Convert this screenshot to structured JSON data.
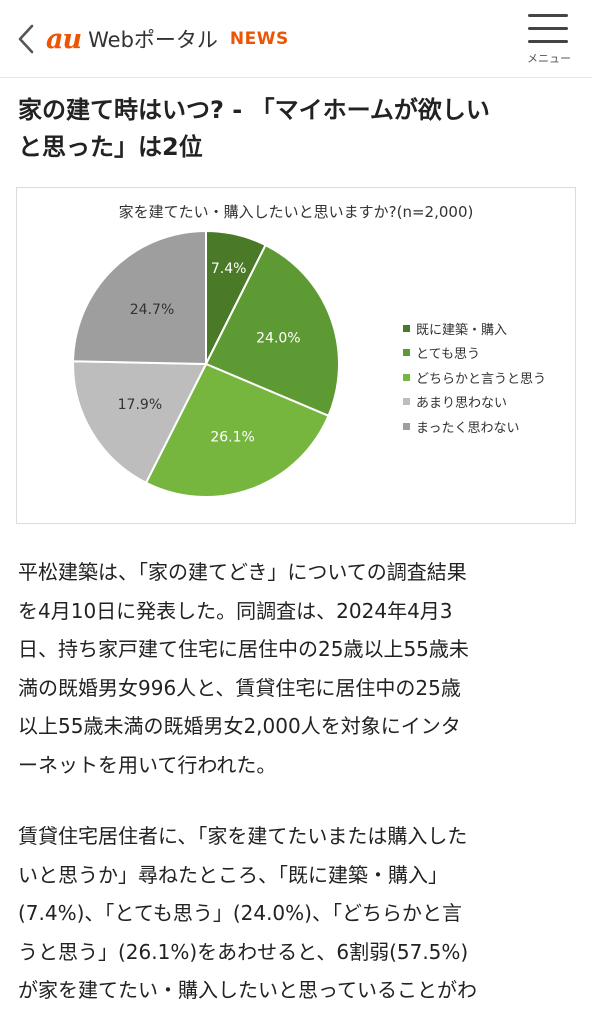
{
  "header": {
    "logo_au": "au",
    "logo_portal": "Webポータル",
    "logo_news": "NEWS",
    "menu_label": "メニュー"
  },
  "article": {
    "title_line1": "家の建て時はいつ? - 「マイホームが欲しい",
    "title_line2": "と思った」は2位",
    "paragraph1": [
      "平松建築は、「家の建てどき」についての調査結果",
      "を4月10日に発表した。同調査は、2024年4月3",
      "日、持ち家戸建て住宅に居住中の25歳以上55歳未",
      "満の既婚男女996人と、賃貸住宅に居住中の25歳",
      "以上55歳未満の既婚男女2,000人を対象にインタ",
      "ーネットを用いて行われた。"
    ],
    "paragraph2": [
      "賃貸住宅居住者に、「家を建てたいまたは購入した",
      "いと思うか」尋ねたところ、「既に建築・購入」",
      "(7.4%)、「とても思う」(24.0%)、「どちらかと言",
      "うと思う」(26.1%)をあわせると、6割弱(57.5%)",
      "が家を建てたい・購入したいと思っていることがわ"
    ]
  },
  "chart_data": {
    "type": "pie",
    "title": "家を建てたい・購入したいと思いますか?(n=2,000)",
    "series": [
      {
        "name": "既に建築・購入",
        "value": 7.4,
        "label": "7.4%",
        "color": "#4a7a28"
      },
      {
        "name": "とても思う",
        "value": 24.0,
        "label": "24.0%",
        "color": "#5e9a33"
      },
      {
        "name": "どちらかと言うと思う",
        "value": 26.1,
        "label": "26.1%",
        "color": "#76b63f"
      },
      {
        "name": "あまり思わない",
        "value": 17.9,
        "label": "17.9%",
        "color": "#bdbdbd"
      },
      {
        "name": "まったく思わない",
        "value": 24.7,
        "label": "24.7%",
        "color": "#9e9e9e"
      }
    ],
    "legend_position": "right"
  }
}
